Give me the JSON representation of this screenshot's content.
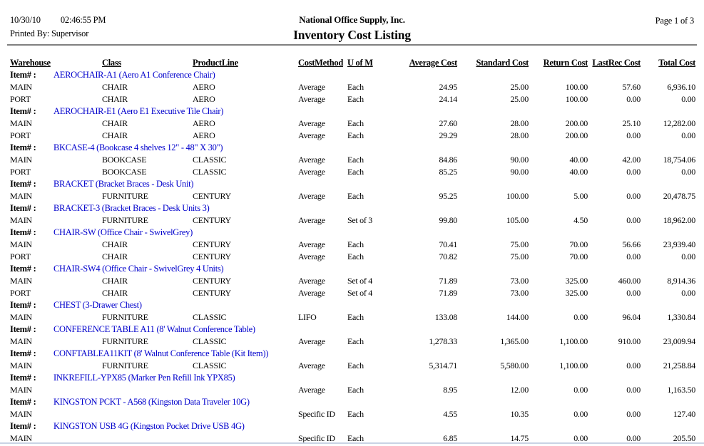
{
  "report": {
    "date": "10/30/10",
    "time": "02:46:55 PM",
    "printed_by": "Printed By: Supervisor",
    "company": "National Office Supply, Inc.",
    "title": "Inventory Cost Listing",
    "page": "Page 1 of 3"
  },
  "colors": {
    "item_link_blue": "#0000cc",
    "rule_gray": "#808080",
    "page_edge_blue": "#c9d3e4"
  },
  "table": {
    "item_label": "Item# :",
    "columns": [
      "Warehouse",
      "Class",
      "ProductLine",
      "CostMethod",
      "U of M",
      "Average Cost",
      "Standard Cost",
      "Return Cost",
      "LastRec Cost",
      "Total Cost"
    ],
    "column_keys": [
      "warehouse",
      "class",
      "product-line",
      "cost-method",
      "uofm",
      "average-cost",
      "standard-cost",
      "return-cost",
      "lastrec-cost",
      "total-cost"
    ],
    "groups": [
      {
        "item": "AEROCHAIR-A1 (Aero A1 Conference Chair)",
        "rows": [
          [
            "MAIN",
            "CHAIR",
            "AERO",
            "Average",
            "Each",
            "24.95",
            "25.00",
            "100.00",
            "57.60",
            "6,936.10"
          ],
          [
            "PORT",
            "CHAIR",
            "AERO",
            "Average",
            "Each",
            "24.14",
            "25.00",
            "100.00",
            "0.00",
            "0.00"
          ]
        ]
      },
      {
        "item": "AEROCHAIR-E1 (Aero E1 Executive Tile Chair)",
        "rows": [
          [
            "MAIN",
            "CHAIR",
            "AERO",
            "Average",
            "Each",
            "27.60",
            "28.00",
            "200.00",
            "25.10",
            "12,282.00"
          ],
          [
            "PORT",
            "CHAIR",
            "AERO",
            "Average",
            "Each",
            "29.29",
            "28.00",
            "200.00",
            "0.00",
            "0.00"
          ]
        ]
      },
      {
        "item": "BKCASE-4 (Bookcase 4 shelves 12\" - 48\" X 30\")",
        "rows": [
          [
            "MAIN",
            "BOOKCASE",
            "CLASSIC",
            "Average",
            "Each",
            "84.86",
            "90.00",
            "40.00",
            "42.00",
            "18,754.06"
          ],
          [
            "PORT",
            "BOOKCASE",
            "CLASSIC",
            "Average",
            "Each",
            "85.25",
            "90.00",
            "40.00",
            "0.00",
            "0.00"
          ]
        ]
      },
      {
        "item": "BRACKET (Bracket Braces - Desk Unit)",
        "rows": [
          [
            "MAIN",
            "FURNITURE",
            "CENTURY",
            "Average",
            "Each",
            "95.25",
            "100.00",
            "5.00",
            "0.00",
            "20,478.75"
          ]
        ]
      },
      {
        "item": "BRACKET-3 (Bracket Braces - Desk Units 3)",
        "rows": [
          [
            "MAIN",
            "FURNITURE",
            "CENTURY",
            "Average",
            "Set of 3",
            "99.80",
            "105.00",
            "4.50",
            "0.00",
            "18,962.00"
          ]
        ]
      },
      {
        "item": "CHAIR-SW (Office Chair - SwivelGrey)",
        "rows": [
          [
            "MAIN",
            "CHAIR",
            "CENTURY",
            "Average",
            "Each",
            "70.41",
            "75.00",
            "70.00",
            "56.66",
            "23,939.40"
          ],
          [
            "PORT",
            "CHAIR",
            "CENTURY",
            "Average",
            "Each",
            "70.82",
            "75.00",
            "70.00",
            "0.00",
            "0.00"
          ]
        ]
      },
      {
        "item": "CHAIR-SW4 (Office Chair - SwivelGrey 4 Units)",
        "rows": [
          [
            "MAIN",
            "CHAIR",
            "CENTURY",
            "Average",
            "Set of 4",
            "71.89",
            "73.00",
            "325.00",
            "460.00",
            "8,914.36"
          ],
          [
            "PORT",
            "CHAIR",
            "CENTURY",
            "Average",
            "Set of 4",
            "71.89",
            "73.00",
            "325.00",
            "0.00",
            "0.00"
          ]
        ]
      },
      {
        "item": "CHEST (3-Drawer Chest)",
        "rows": [
          [
            "MAIN",
            "FURNITURE",
            "CLASSIC",
            "LIFO",
            "Each",
            "133.08",
            "144.00",
            "0.00",
            "96.04",
            "1,330.84"
          ]
        ]
      },
      {
        "item": "CONFERENCE TABLE A11 (8' Walnut Conference Table)",
        "rows": [
          [
            "MAIN",
            "FURNITURE",
            "CLASSIC",
            "Average",
            "Each",
            "1,278.33",
            "1,365.00",
            "1,100.00",
            "910.00",
            "23,009.94"
          ]
        ]
      },
      {
        "item": "CONFTABLEA11KIT (8' Walnut Conference Table (Kit Item))",
        "rows": [
          [
            "MAIN",
            "FURNITURE",
            "CLASSIC",
            "Average",
            "Each",
            "5,314.71",
            "5,580.00",
            "1,100.00",
            "0.00",
            "21,258.84"
          ]
        ]
      },
      {
        "item": "INKREFILL-YPX85 (Marker Pen Refill Ink YPX85)",
        "rows": [
          [
            "MAIN",
            "",
            "",
            "Average",
            "Each",
            "8.95",
            "12.00",
            "0.00",
            "0.00",
            "1,163.50"
          ]
        ]
      },
      {
        "item": "KINGSTON PCKT - A568 (Kingston Data Traveler 10G)",
        "rows": [
          [
            "MAIN",
            "",
            "",
            "Specific ID",
            "Each",
            "4.55",
            "10.35",
            "0.00",
            "0.00",
            "127.40"
          ]
        ]
      },
      {
        "item": "KINGSTON USB 4G (Kingston Pocket Drive USB 4G)",
        "rows": [
          [
            "MAIN",
            "",
            "",
            "Specific ID",
            "Each",
            "6.85",
            "14.75",
            "0.00",
            "0.00",
            "205.50"
          ]
        ]
      }
    ]
  }
}
